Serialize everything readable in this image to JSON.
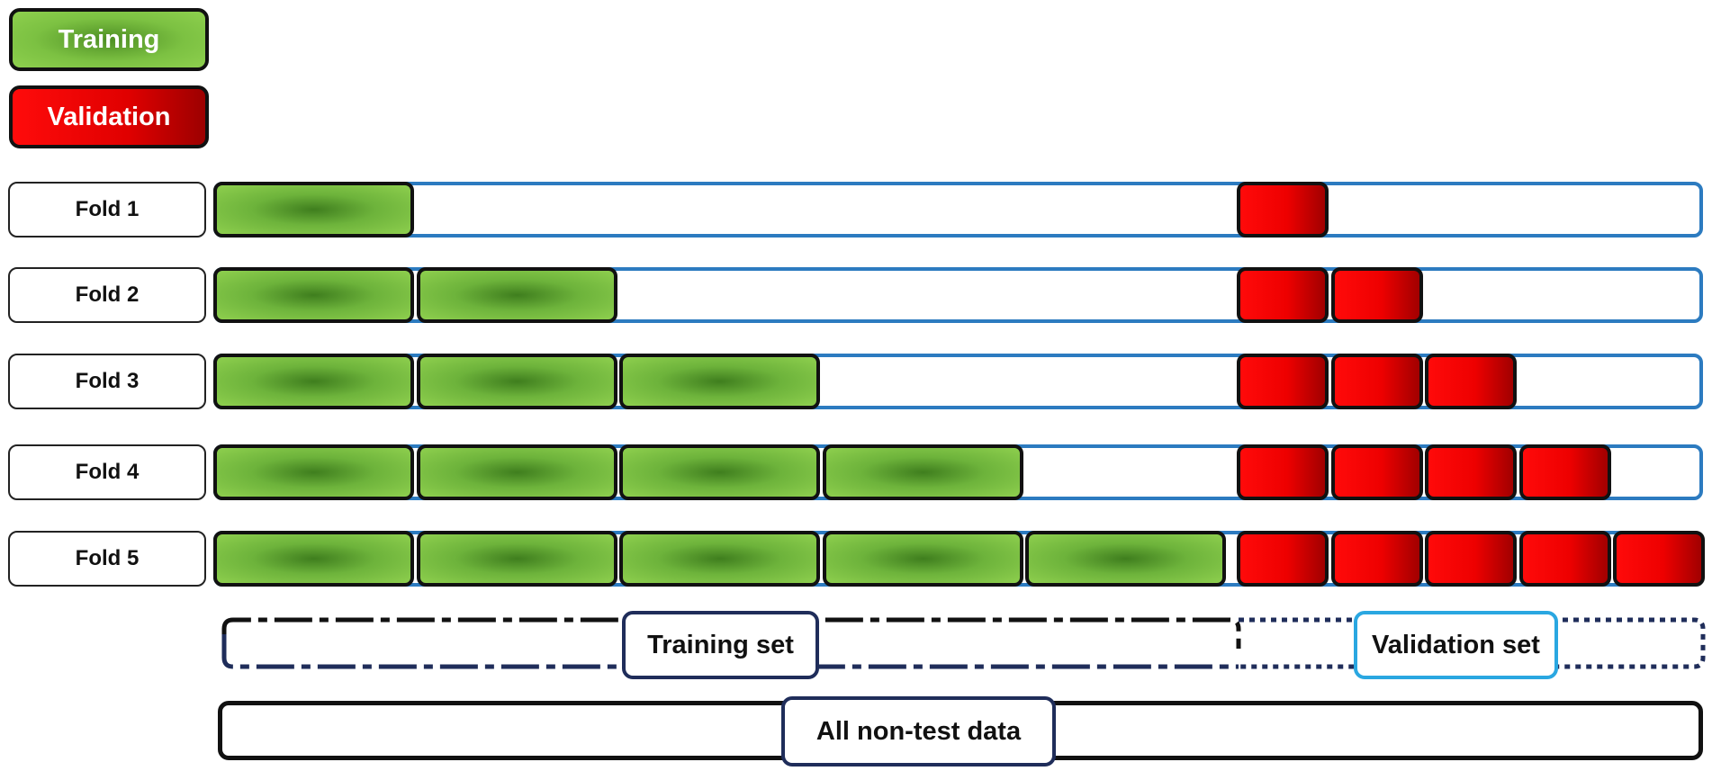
{
  "legend": {
    "training_label": "Training",
    "validation_label": "Validation"
  },
  "folds": [
    {
      "label": "Fold 1",
      "training_blocks": 1,
      "validation_blocks": 1
    },
    {
      "label": "Fold 2",
      "training_blocks": 2,
      "validation_blocks": 2
    },
    {
      "label": "Fold 3",
      "training_blocks": 3,
      "validation_blocks": 3
    },
    {
      "label": "Fold 4",
      "training_blocks": 4,
      "validation_blocks": 4
    },
    {
      "label": "Fold 5",
      "training_blocks": 5,
      "validation_blocks": 5
    }
  ],
  "training_set_label": "Training set",
  "validation_set_label": "Validation set",
  "all_data_label": "All non-test data",
  "colors": {
    "training_green": "#7cc142",
    "validation_red": "#e00000",
    "track_blue": "#2c7bc0",
    "training_set_border": "#1f2d5a",
    "validation_set_border": "#2aa7e1"
  }
}
